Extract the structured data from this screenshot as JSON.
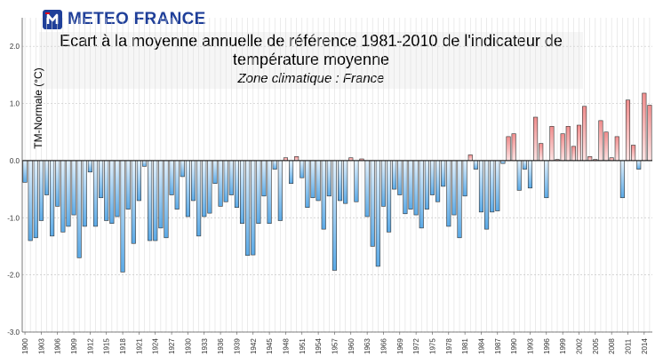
{
  "logo": {
    "text": "METEO FRANCE"
  },
  "chart_data": {
    "type": "bar",
    "title": "Ecart à la moyenne annuelle de référence 1981-2010 de l'indicateur de température moyenne",
    "title_line1": "Ecart à la moyenne annuelle de référence 1981-2010 de l'indicateur de",
    "title_line2": "température moyenne",
    "subtitle": "Zone climatique : France",
    "ylabel": "TM-Normale (°C)",
    "xlabel": "",
    "ylim": [
      -3.0,
      2.5
    ],
    "yticks": [
      "2.0",
      "1.0",
      "0.0",
      "-1.0",
      "-2.0",
      "-3.0"
    ],
    "ytick_values": [
      2.0,
      1.0,
      0.0,
      -1.0,
      -2.0,
      -3.0
    ],
    "xticks": [
      "1900",
      "1903",
      "1906",
      "1909",
      "1912",
      "1915",
      "1918",
      "1921",
      "1924",
      "1927",
      "1930",
      "1933",
      "1936",
      "1939",
      "1942",
      "1945",
      "1948",
      "1951",
      "1954",
      "1957",
      "1960",
      "1963",
      "1966",
      "1969",
      "1972",
      "1975",
      "1978",
      "1981",
      "1984",
      "1987",
      "1990",
      "1993",
      "1996",
      "1999",
      "2002",
      "2005",
      "2008",
      "2011",
      "2014"
    ],
    "first_year": 1900,
    "colors": {
      "positive": "#f08d8d",
      "negative": "#5aa9e6",
      "zero_line": "#000000",
      "grid": "#dedede"
    },
    "values": [
      -0.38,
      -1.4,
      -1.35,
      -1.05,
      -0.6,
      -1.32,
      -0.8,
      -1.25,
      -1.15,
      -0.95,
      -1.7,
      -1.15,
      -0.2,
      -1.15,
      -0.65,
      -1.05,
      -1.1,
      -0.98,
      -1.95,
      -0.85,
      -1.45,
      -0.7,
      -0.1,
      -1.4,
      -1.4,
      -1.18,
      -1.35,
      -0.6,
      -0.85,
      -0.28,
      -0.98,
      -0.7,
      -1.32,
      -0.98,
      -0.92,
      -0.4,
      -0.8,
      -0.72,
      -0.6,
      -0.82,
      -1.1,
      -1.66,
      -1.65,
      -1.1,
      -0.62,
      -1.1,
      -0.15,
      -1.05,
      0.05,
      -0.4,
      0.07,
      -0.3,
      -0.82,
      -0.65,
      -0.7,
      -1.2,
      -0.62,
      -1.92,
      -0.7,
      -0.75,
      0.05,
      -0.72,
      0.03,
      -0.98,
      -1.5,
      -1.85,
      -0.8,
      -1.25,
      -0.5,
      -0.6,
      -0.93,
      -0.85,
      -0.95,
      -1.18,
      -0.85,
      -0.6,
      -0.72,
      -0.45,
      -1.15,
      -0.95,
      -1.35,
      -0.62,
      0.1,
      -0.15,
      -0.9,
      -1.2,
      -0.9,
      -0.88,
      -0.05,
      0.42,
      0.47,
      -0.52,
      -0.15,
      -0.48,
      0.76,
      0.3,
      -0.65,
      0.6,
      0.02,
      0.47,
      0.6,
      0.25,
      0.62,
      0.95,
      0.07,
      0.02,
      0.7,
      0.5,
      0.05,
      0.42,
      -0.65,
      1.06,
      0.27,
      -0.15,
      1.18,
      0.97
    ]
  }
}
